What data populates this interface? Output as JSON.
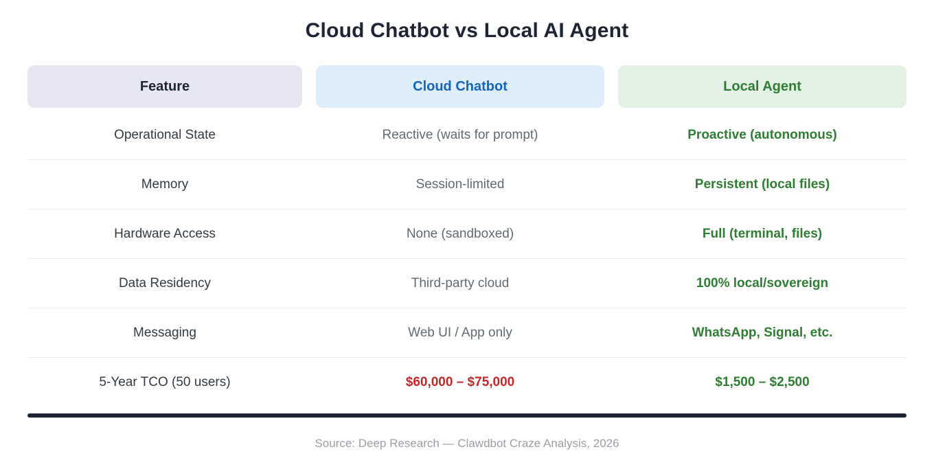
{
  "chart_data": {
    "type": "table",
    "title": "Cloud Chatbot vs Local AI Agent",
    "columns": [
      {
        "label": "Feature",
        "text_color": "#1d2433",
        "bg_color": "#e6e7f3"
      },
      {
        "label": "Cloud Chatbot",
        "text_color": "#1565c0",
        "bg_color": "#dfeefb"
      },
      {
        "label": "Local Agent",
        "text_color": "#2e7d32",
        "bg_color": "#e4f2e6"
      }
    ],
    "rows": [
      {
        "feature": "Operational State",
        "cloud": "Reactive (waits for prompt)",
        "local": "Proactive (autonomous)"
      },
      {
        "feature": "Memory",
        "cloud": "Session-limited",
        "local": "Persistent (local files)"
      },
      {
        "feature": "Hardware Access",
        "cloud": "None (sandboxed)",
        "local": "Full (terminal, files)"
      },
      {
        "feature": "Data Residency",
        "cloud": "Third-party cloud",
        "local": "100% local/sovereign"
      },
      {
        "feature": "Messaging",
        "cloud": "Web UI / App only",
        "local": "WhatsApp, Signal, etc."
      },
      {
        "feature": "5-Year TCO (50 users)",
        "cloud": "$60,000 – $75,000",
        "local": "$1,500 – $2,500",
        "cloud_style": "negative"
      }
    ],
    "value_colors": {
      "local_positive": "#2e7d32",
      "cloud_neutral": "#5f6a72",
      "cloud_negative": "#c62828"
    },
    "layout_hints": {
      "grid": "off",
      "legend": "none",
      "bottom_rule_color": "#1d2333"
    }
  },
  "footer": {
    "source": "Source: Deep Research — Clawdbot Craze Analysis, 2026"
  }
}
